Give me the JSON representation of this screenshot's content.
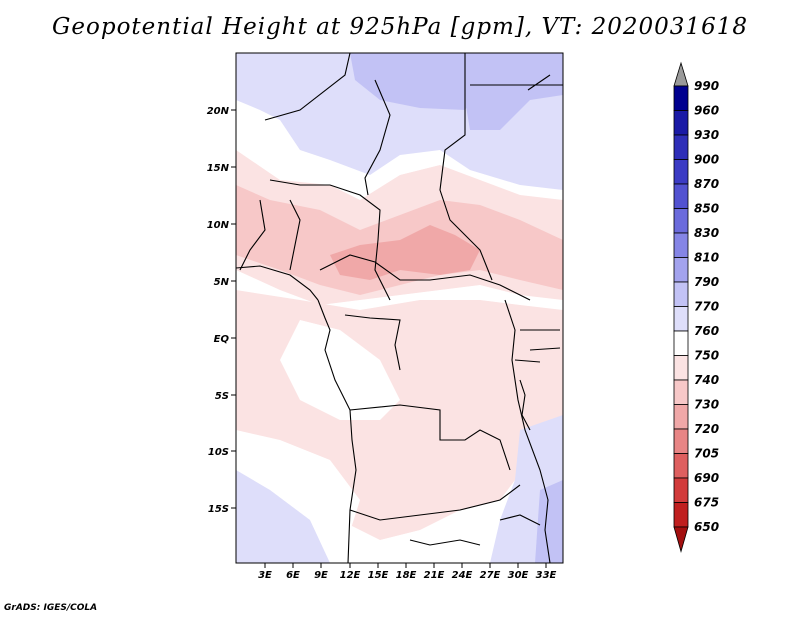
{
  "title": "Geopotential Height at 925hPa [gpm], VT: 2020031618",
  "credit": "GrADS: IGES/COLA",
  "map": {
    "lat_labels": [
      "20N",
      "15N",
      "10N",
      "5N",
      "EQ",
      "5S",
      "10S",
      "15S"
    ],
    "lon_labels": [
      "3E",
      "6E",
      "9E",
      "12E",
      "15E",
      "18E",
      "21E",
      "24E",
      "27E",
      "30E",
      "33E"
    ],
    "border_color": "#000000"
  },
  "colorbar": {
    "levels": [
      "990",
      "960",
      "930",
      "900",
      "870",
      "850",
      "830",
      "810",
      "790",
      "770",
      "760",
      "750",
      "740",
      "730",
      "720",
      "705",
      "690",
      "675",
      "650"
    ],
    "colors": [
      "#00008f",
      "#1a1aa6",
      "#2e2eb8",
      "#3b3bc4",
      "#5252d1",
      "#6b6bdc",
      "#8585e6",
      "#a3a3ee",
      "#c2c2f5",
      "#dedefa",
      "#ffffff",
      "#fbe3e3",
      "#f7c8c8",
      "#f0a8a8",
      "#e88585",
      "#de5f5f",
      "#d23b3b",
      "#c01f1f",
      "#a30f0f"
    ],
    "top_color": "#9a9a9a"
  }
}
